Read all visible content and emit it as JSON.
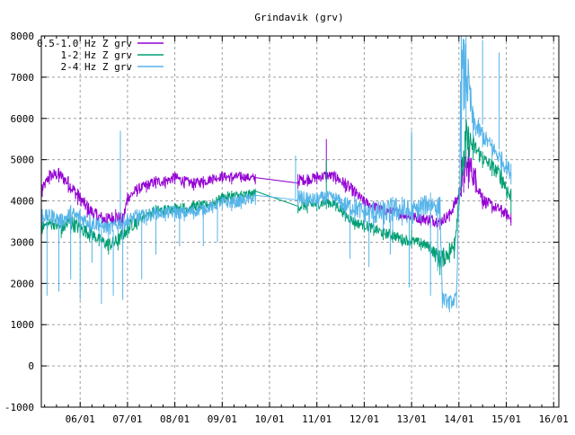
{
  "chart_data": {
    "type": "line",
    "title": "Grindavik (grv)",
    "xlabel": "",
    "ylabel": "",
    "xlim": [
      5.18,
      16.11
    ],
    "ylim": [
      -1000,
      8000
    ],
    "grid": true,
    "legend_position": "top-left",
    "xticks": [
      {
        "value": 6,
        "label": "06/01"
      },
      {
        "value": 7,
        "label": "07/01"
      },
      {
        "value": 8,
        "label": "08/01"
      },
      {
        "value": 9,
        "label": "09/01"
      },
      {
        "value": 10,
        "label": "10/01"
      },
      {
        "value": 11,
        "label": "11/01"
      },
      {
        "value": 12,
        "label": "12/01"
      },
      {
        "value": 13,
        "label": "13/01"
      },
      {
        "value": 14,
        "label": "14/01"
      },
      {
        "value": 15,
        "label": "15/01"
      },
      {
        "value": 16,
        "label": "16/01"
      }
    ],
    "yticks": [
      -1000,
      0,
      1000,
      2000,
      3000,
      4000,
      5000,
      6000,
      7000,
      8000
    ],
    "series": [
      {
        "name": "0.5-1.0 Hz Z grv",
        "color": "#9400d3",
        "x": [
          5.2,
          5.35,
          5.55,
          5.75,
          5.95,
          6.15,
          6.35,
          6.55,
          6.75,
          6.9,
          7.0,
          7.2,
          7.4,
          7.6,
          7.8,
          8.0,
          8.2,
          8.4,
          8.6,
          8.8,
          9.0,
          9.2,
          9.4,
          9.7,
          10.6,
          10.8,
          11.0,
          11.2,
          11.4,
          11.6,
          11.8,
          12.0,
          12.2,
          12.4,
          12.6,
          12.8,
          13.0,
          13.2,
          13.4,
          13.6,
          13.8,
          14.0,
          14.1,
          14.2,
          14.35,
          14.5,
          14.7,
          14.9,
          15.1
        ],
        "low": [
          4100,
          4400,
          4450,
          4200,
          3900,
          3600,
          3400,
          3300,
          3400,
          3200,
          3900,
          4100,
          4200,
          4300,
          4300,
          4400,
          4300,
          4250,
          4300,
          4400,
          4450,
          4400,
          4450,
          4400,
          4300,
          4350,
          4400,
          4450,
          4400,
          4200,
          4000,
          3800,
          3700,
          3600,
          3600,
          3500,
          3450,
          3400,
          3350,
          3300,
          3500,
          3900,
          4200,
          4300,
          4200,
          3800,
          3700,
          3600,
          3400
        ],
        "high": [
          4400,
          4750,
          4800,
          4600,
          4300,
          4000,
          3800,
          3700,
          3800,
          3700,
          4200,
          4400,
          4500,
          4600,
          4600,
          4700,
          4600,
          4550,
          4600,
          4650,
          4700,
          4700,
          4700,
          4650,
          4650,
          4650,
          4700,
          4750,
          4700,
          4550,
          4350,
          4100,
          4000,
          3900,
          3850,
          3800,
          3750,
          3700,
          3700,
          3650,
          3800,
          4300,
          5000,
          5300,
          4800,
          4200,
          4000,
          3900,
          3700
        ],
        "spikes": [
          [
            11.2,
            5500
          ],
          [
            14.05,
            5600
          ]
        ]
      },
      {
        "name": "1-2 Hz Z grv",
        "color": "#009e73",
        "x": [
          5.2,
          5.4,
          5.6,
          5.8,
          6.0,
          6.2,
          6.4,
          6.6,
          6.8,
          7.0,
          7.2,
          7.4,
          7.6,
          7.8,
          8.0,
          8.2,
          8.4,
          8.6,
          8.8,
          9.0,
          9.2,
          9.4,
          9.7,
          10.6,
          10.8,
          11.0,
          11.2,
          11.4,
          11.6,
          11.8,
          12.0,
          12.2,
          12.4,
          12.6,
          12.8,
          13.0,
          13.2,
          13.4,
          13.6,
          13.8,
          13.9,
          14.0,
          14.15,
          14.3,
          14.5,
          14.7,
          14.9,
          15.1
        ],
        "low": [
          3200,
          3300,
          3100,
          3200,
          3100,
          3000,
          2900,
          2700,
          2800,
          3100,
          3300,
          3500,
          3600,
          3600,
          3700,
          3650,
          3700,
          3750,
          3800,
          3900,
          3900,
          3950,
          4000,
          3700,
          3700,
          3750,
          3800,
          3750,
          3500,
          3300,
          3250,
          3150,
          3050,
          3000,
          2900,
          2850,
          2800,
          2700,
          2200,
          2500,
          2600,
          3800,
          4800,
          5000,
          4800,
          4600,
          4300,
          3700
        ],
        "high": [
          3500,
          3600,
          3500,
          3700,
          3500,
          3400,
          3200,
          3100,
          3200,
          3500,
          3700,
          3800,
          3900,
          3900,
          3950,
          3950,
          4000,
          4000,
          4050,
          4200,
          4250,
          4250,
          4300,
          4000,
          4050,
          4050,
          4100,
          4050,
          3800,
          3600,
          3550,
          3450,
          3350,
          3300,
          3200,
          3150,
          3100,
          3000,
          2800,
          3000,
          3100,
          4300,
          6000,
          5600,
          5200,
          5000,
          4800,
          4300
        ],
        "spikes": [
          [
            10.55,
            4700
          ],
          [
            11.2,
            5000
          ],
          [
            13.0,
            5600
          ]
        ]
      },
      {
        "name": "2-4 Hz Z grv",
        "color": "#56b4e9",
        "x": [
          5.2,
          5.4,
          5.6,
          5.8,
          6.0,
          6.2,
          6.4,
          6.6,
          6.8,
          7.0,
          7.2,
          7.4,
          7.6,
          7.8,
          8.0,
          8.2,
          8.4,
          8.6,
          8.8,
          9.0,
          9.2,
          9.4,
          9.7,
          10.6,
          10.8,
          11.0,
          11.2,
          11.4,
          11.6,
          11.8,
          12.0,
          12.2,
          12.4,
          12.6,
          12.8,
          13.0,
          13.2,
          13.4,
          13.6,
          13.65,
          13.8,
          13.95,
          14.05,
          14.15,
          14.3,
          14.5,
          14.7,
          14.9,
          15.1
        ],
        "low": [
          3400,
          3400,
          3300,
          3300,
          3300,
          3200,
          3200,
          3100,
          3200,
          3300,
          3400,
          3400,
          3500,
          3500,
          3500,
          3500,
          3550,
          3600,
          3700,
          3800,
          3750,
          3800,
          3900,
          3800,
          3800,
          3800,
          3900,
          3850,
          3600,
          3500,
          3400,
          3300,
          3300,
          3300,
          3400,
          3300,
          3500,
          3600,
          3500,
          1400,
          1300,
          1400,
          5000,
          6000,
          5500,
          5300,
          5000,
          4700,
          4400
        ],
        "high": [
          3800,
          3800,
          3700,
          3900,
          3800,
          3700,
          3600,
          3500,
          3600,
          3700,
          3800,
          3800,
          3850,
          3850,
          3900,
          3850,
          3900,
          3950,
          4000,
          4100,
          4100,
          4150,
          4200,
          4300,
          4200,
          4200,
          4250,
          4200,
          4100,
          4100,
          3950,
          4000,
          4000,
          4100,
          4100,
          4000,
          4100,
          4200,
          4100,
          1800,
          1700,
          1800,
          8000,
          8000,
          6200,
          5800,
          5500,
          5200,
          4900
        ],
        "spikes": [
          [
            5.3,
            1700
          ],
          [
            5.55,
            1800
          ],
          [
            5.8,
            2100
          ],
          [
            6.0,
            1600
          ],
          [
            6.25,
            2500
          ],
          [
            6.45,
            1500
          ],
          [
            6.7,
            1700
          ],
          [
            6.85,
            5700
          ],
          [
            6.9,
            1600
          ],
          [
            7.3,
            2100
          ],
          [
            7.6,
            2700
          ],
          [
            8.1,
            2900
          ],
          [
            8.6,
            2900
          ],
          [
            8.9,
            3000
          ],
          [
            10.55,
            5100
          ],
          [
            11.7,
            2600
          ],
          [
            12.1,
            2400
          ],
          [
            12.55,
            2700
          ],
          [
            12.95,
            1900
          ],
          [
            13.0,
            5700
          ],
          [
            13.4,
            1700
          ],
          [
            13.55,
            2300
          ],
          [
            14.5,
            7900
          ],
          [
            14.85,
            7600
          ]
        ]
      }
    ]
  }
}
